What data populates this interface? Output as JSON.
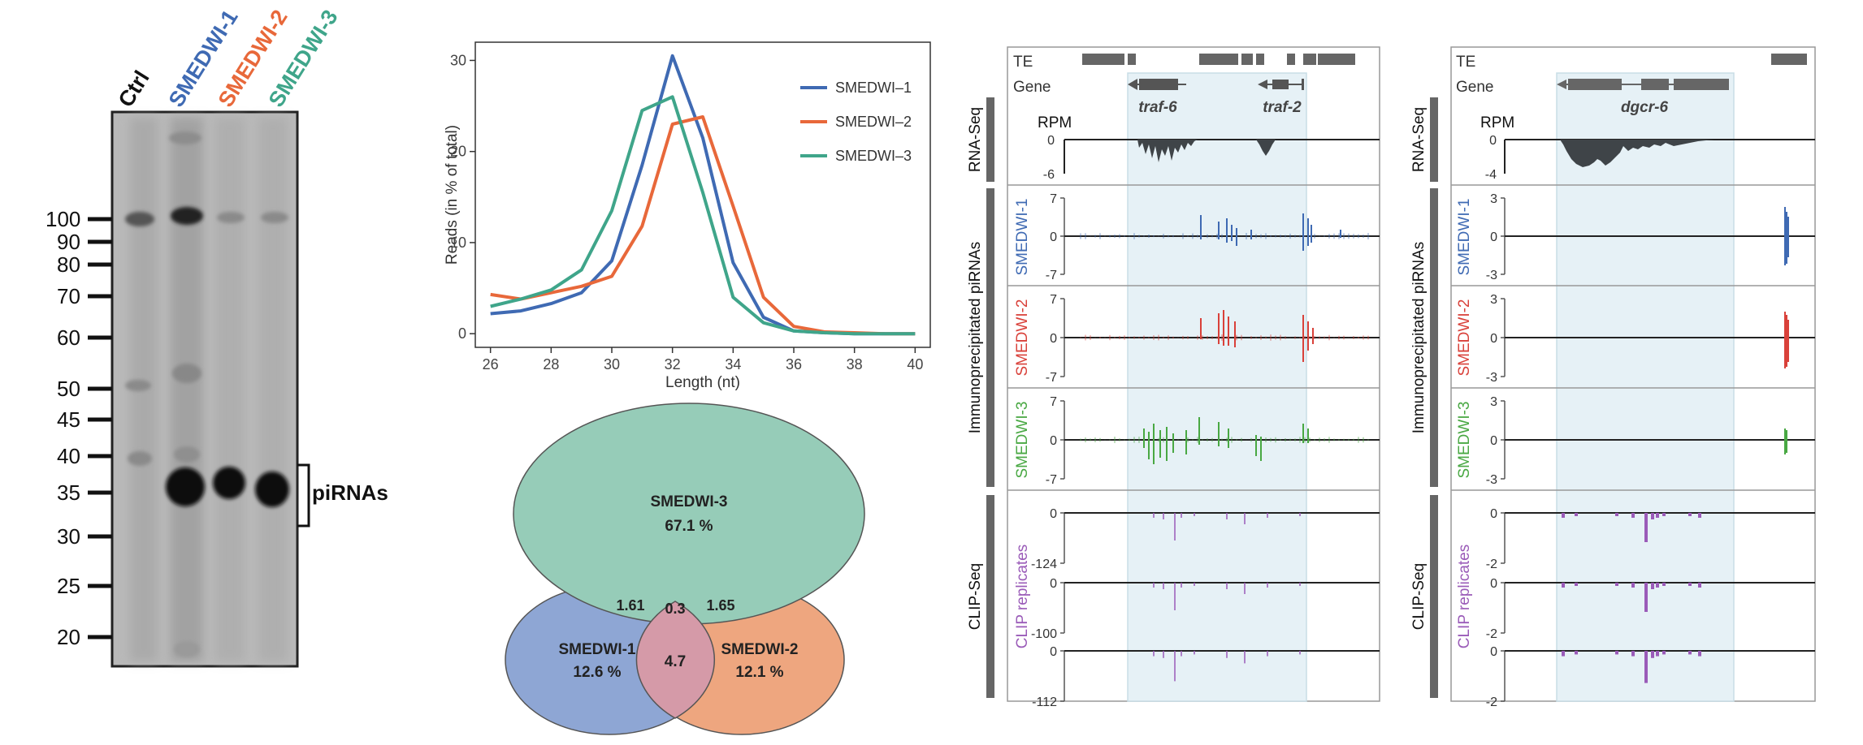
{
  "colors": {
    "smedwi1": "#3f6ab3",
    "smedwi2": "#e8683a",
    "smedwi3": "#3fa58a",
    "smedwi2_track": "#d9413a",
    "smedwi3_track": "#49a843",
    "clip": "#9a5bb8",
    "rnaseq": "#3f4448",
    "highlight": "#e6f1f6",
    "bar_gray": "#666666"
  },
  "gel": {
    "lanes": [
      "Ctrl",
      "SMEDWI-1",
      "SMEDWI-2",
      "SMEDWI-3"
    ],
    "ladder": [
      "100",
      "90",
      "80",
      "70",
      "60",
      "50",
      "45",
      "40",
      "35",
      "30",
      "25",
      "20"
    ],
    "band_label": "piRNAs"
  },
  "chart_data": {
    "type": "line",
    "title": "",
    "xlabel": "Length (nt)",
    "ylabel": "Reads (in % of total)",
    "xlim": [
      25.5,
      40.5
    ],
    "ylim": [
      -1.5,
      32
    ],
    "xticks": [
      "26",
      "28",
      "30",
      "32",
      "34",
      "36",
      "38",
      "40"
    ],
    "yticks": [
      "0",
      "10",
      "20",
      "30"
    ],
    "x": [
      26,
      27,
      28,
      29,
      30,
      31,
      32,
      33,
      34,
      35,
      36,
      37,
      38,
      39,
      40
    ],
    "series": [
      {
        "name": "SMEDWI–1",
        "color": "#3f6ab3",
        "values": [
          2.2,
          2.5,
          3.3,
          4.5,
          8.0,
          18.5,
          30.5,
          21.5,
          7.8,
          1.8,
          0.3,
          0.1,
          0.0,
          0.0,
          0.0
        ]
      },
      {
        "name": "SMEDWI–2",
        "color": "#e8683a",
        "values": [
          4.3,
          3.8,
          4.5,
          5.2,
          6.3,
          11.8,
          23.0,
          23.8,
          14.0,
          4.0,
          0.8,
          0.2,
          0.1,
          0.0,
          0.0
        ]
      },
      {
        "name": "SMEDWI–3",
        "color": "#3fa58a",
        "values": [
          3.0,
          3.8,
          4.8,
          7.0,
          13.5,
          24.5,
          26.0,
          15.5,
          4.0,
          1.2,
          0.3,
          0.1,
          0.0,
          0.0,
          0.0
        ]
      }
    ],
    "legend": "top-right",
    "grid": false
  },
  "venn": {
    "circles": [
      {
        "name": "SMEDWI-3",
        "value": "67.1 %"
      },
      {
        "name": "SMEDWI-1",
        "value": "12.6 %"
      },
      {
        "name": "SMEDWI-2",
        "value": "12.1 %"
      }
    ],
    "overlaps": {
      "center": "4.7",
      "s1_s3": "1.61",
      "all_top": "0.3",
      "s2_s3": "1.65"
    }
  },
  "browser_left": {
    "labels": {
      "te": "TE",
      "gene": "Gene",
      "rpm": "RPM"
    },
    "genes": [
      "traf-6",
      "traf-2"
    ],
    "rnaseq_ticks": [
      "0",
      "-6"
    ],
    "piwi_ticks": [
      "7",
      "0",
      "-7"
    ],
    "clip_ticks": [
      [
        "0",
        "-124"
      ],
      [
        "0",
        "-100"
      ],
      [
        "0",
        "-112"
      ]
    ]
  },
  "browser_right": {
    "labels": {
      "te": "TE",
      "gene": "Gene",
      "rpm": "RPM"
    },
    "genes": [
      "dgcr-6"
    ],
    "rnaseq_ticks": [
      "0",
      "-4"
    ],
    "piwi_ticks": [
      "3",
      "0",
      "-3"
    ],
    "clip_ticks": [
      [
        "0",
        "-2"
      ],
      [
        "0",
        "-2"
      ],
      [
        "0",
        "-2"
      ]
    ]
  },
  "side_labels": {
    "rnaseq": "RNA-Seq",
    "ip": "Immunoprecipitated piRNAs",
    "clip": "CLIP-Seq",
    "track1": "SMEDWI-1",
    "track2": "SMEDWI-2",
    "track3": "SMEDWI-3",
    "clip_reps": "CLIP replicates"
  }
}
